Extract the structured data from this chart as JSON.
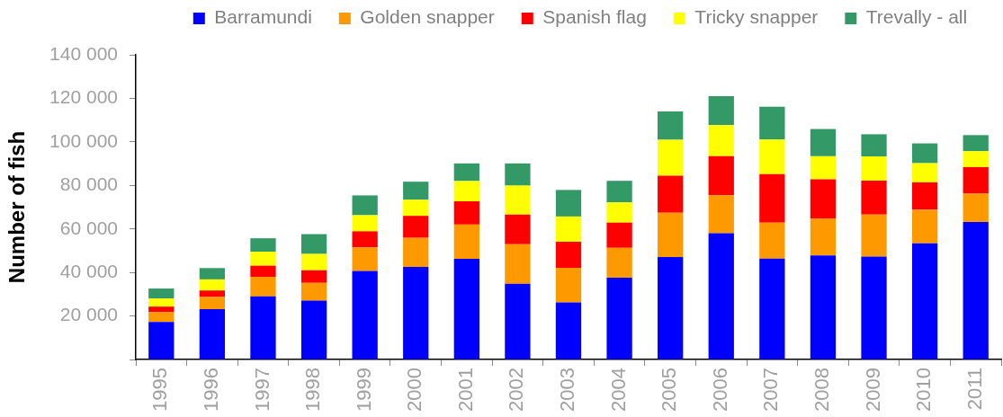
{
  "chart_data": {
    "type": "bar",
    "stacked": true,
    "ylabel": "Number of fish",
    "categories": [
      "1995",
      "1996",
      "1997",
      "1998",
      "1999",
      "2000",
      "2001",
      "2002",
      "2003",
      "2004",
      "2005",
      "2006",
      "2007",
      "2008",
      "2009",
      "2010",
      "2011"
    ],
    "series": [
      {
        "name": "Barramundi",
        "color": "#0000ff",
        "values": [
          17200,
          23100,
          29000,
          27000,
          40700,
          42500,
          46300,
          34800,
          26200,
          37600,
          47100,
          58000,
          46400,
          47800,
          47300,
          53400,
          63200
        ]
      },
      {
        "name": "Golden snapper",
        "color": "#ff9900",
        "values": [
          4500,
          5600,
          9000,
          8200,
          10800,
          13400,
          15700,
          18200,
          15900,
          13700,
          20300,
          17500,
          16500,
          17000,
          19300,
          15400,
          13000
        ]
      },
      {
        "name": "Spanish flag",
        "color": "#ff0000",
        "values": [
          2600,
          3000,
          5100,
          5800,
          7400,
          10100,
          10700,
          13600,
          12000,
          11600,
          17100,
          17900,
          22300,
          18000,
          15600,
          12600,
          12200
        ]
      },
      {
        "name": "Tricky snapper",
        "color": "#ffff00",
        "values": [
          3700,
          5100,
          6400,
          7500,
          7400,
          7400,
          9300,
          13300,
          11600,
          9300,
          16500,
          14300,
          15900,
          10600,
          11100,
          8800,
          7300
        ]
      },
      {
        "name": "Trevally - all",
        "color": "#339966",
        "values": [
          4600,
          5200,
          6200,
          9100,
          9100,
          8300,
          8100,
          10200,
          12200,
          9900,
          13000,
          13300,
          15000,
          12500,
          10200,
          9100,
          7400
        ]
      }
    ],
    "ylim": [
      0,
      140000
    ],
    "yticks": [
      {
        "value": 0,
        "label": null
      },
      {
        "value": 20000,
        "label": "20 000"
      },
      {
        "value": 40000,
        "label": "40 000"
      },
      {
        "value": 60000,
        "label": "60 000"
      },
      {
        "value": 80000,
        "label": "80 000"
      },
      {
        "value": 100000,
        "label": "100 000"
      },
      {
        "value": 120000,
        "label": "120 000"
      },
      {
        "value": 140000,
        "label": "140 000"
      }
    ],
    "grid": false,
    "legend": "top"
  }
}
